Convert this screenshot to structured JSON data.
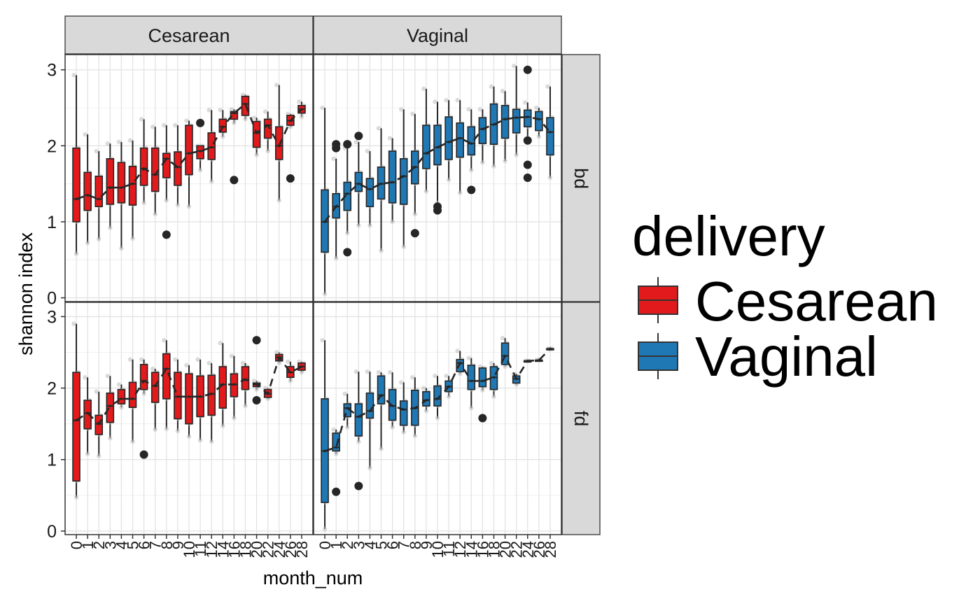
{
  "chart_data": {
    "type": "box",
    "xlabel": "month_num",
    "ylabel": "shannon index",
    "ylim": [
      -0.05,
      3.2
    ],
    "y_ticks": [
      0,
      1,
      2,
      3
    ],
    "x_categories": [
      "0",
      "1",
      "2",
      "3",
      "4",
      "5",
      "6",
      "7",
      "8",
      "9",
      "10",
      "11",
      "12",
      "14",
      "16",
      "18",
      "20",
      "22",
      "24",
      "26",
      "28"
    ],
    "facet_cols": [
      "Cesarean",
      "Vaginal"
    ],
    "facet_rows": [
      "bd",
      "fd"
    ],
    "grid": true,
    "legend": {
      "title": "delivery",
      "position": "right",
      "entries": [
        {
          "name": "Cesarean",
          "color": "#e31a1c"
        },
        {
          "name": "Vaginal",
          "color": "#1f78b4"
        }
      ]
    },
    "panels": [
      {
        "row": "bd",
        "col": "Cesarean",
        "color": "#e31a1c",
        "boxes": [
          {
            "x": "0",
            "lw": 0.58,
            "q1": 1.0,
            "med": 1.3,
            "q3": 1.97,
            "uw": 2.93,
            "outliers": []
          },
          {
            "x": "1",
            "lw": 0.72,
            "q1": 1.15,
            "med": 1.35,
            "q3": 1.65,
            "uw": 2.15,
            "outliers": []
          },
          {
            "x": "2",
            "lw": 0.77,
            "q1": 1.2,
            "med": 1.3,
            "q3": 1.6,
            "uw": 1.93,
            "outliers": []
          },
          {
            "x": "3",
            "lw": 0.92,
            "q1": 1.23,
            "med": 1.45,
            "q3": 1.83,
            "uw": 2.03,
            "outliers": []
          },
          {
            "x": "4",
            "lw": 0.65,
            "q1": 1.25,
            "med": 1.45,
            "q3": 1.78,
            "uw": 2.05,
            "outliers": []
          },
          {
            "x": "5",
            "lw": 0.78,
            "q1": 1.22,
            "med": 1.5,
            "q3": 1.73,
            "uw": 2.07,
            "outliers": []
          },
          {
            "x": "6",
            "lw": 1.25,
            "q1": 1.48,
            "med": 1.7,
            "q3": 1.97,
            "uw": 2.35,
            "outliers": []
          },
          {
            "x": "7",
            "lw": 1.1,
            "q1": 1.4,
            "med": 1.62,
            "q3": 1.97,
            "uw": 2.25,
            "outliers": []
          },
          {
            "x": "8",
            "lw": 1.28,
            "q1": 1.58,
            "med": 1.83,
            "q3": 1.9,
            "uw": 2.27,
            "outliers": [
              0.83
            ]
          },
          {
            "x": "9",
            "lw": 1.22,
            "q1": 1.48,
            "med": 1.72,
            "q3": 1.92,
            "uw": 2.27,
            "outliers": []
          },
          {
            "x": "10",
            "lw": 1.2,
            "q1": 1.62,
            "med": 1.9,
            "q3": 2.27,
            "uw": 2.33,
            "outliers": []
          },
          {
            "x": "11",
            "lw": 1.68,
            "q1": 1.83,
            "med": 1.93,
            "q3": 2.0,
            "uw": 2.0,
            "outliers": [
              2.3
            ]
          },
          {
            "x": "12",
            "lw": 1.53,
            "q1": 1.82,
            "med": 1.98,
            "q3": 2.17,
            "uw": 2.47,
            "outliers": []
          },
          {
            "x": "14",
            "lw": 2.12,
            "q1": 2.18,
            "med": 2.25,
            "q3": 2.35,
            "uw": 2.47,
            "outliers": []
          },
          {
            "x": "16",
            "lw": 2.3,
            "q1": 2.35,
            "med": 2.43,
            "q3": 2.45,
            "uw": 2.48,
            "outliers": [
              1.55
            ]
          },
          {
            "x": "18",
            "lw": 2.35,
            "q1": 2.4,
            "med": 2.55,
            "q3": 2.65,
            "uw": 2.67,
            "outliers": []
          },
          {
            "x": "20",
            "lw": 1.88,
            "q1": 1.98,
            "med": 2.17,
            "q3": 2.32,
            "uw": 2.37,
            "outliers": []
          },
          {
            "x": "22",
            "lw": 1.93,
            "q1": 2.1,
            "med": 2.27,
            "q3": 2.35,
            "uw": 2.45,
            "outliers": []
          },
          {
            "x": "24",
            "lw": 1.28,
            "q1": 1.82,
            "med": 2.0,
            "q3": 2.25,
            "uw": 2.8,
            "outliers": []
          },
          {
            "x": "26",
            "lw": 2.25,
            "q1": 2.27,
            "med": 2.33,
            "q3": 2.4,
            "uw": 2.42,
            "outliers": [
              1.57
            ]
          },
          {
            "x": "28",
            "lw": 2.38,
            "q1": 2.43,
            "med": 2.48,
            "q3": 2.53,
            "uw": 2.58,
            "outliers": []
          }
        ]
      },
      {
        "row": "bd",
        "col": "Vaginal",
        "color": "#1f78b4",
        "boxes": [
          {
            "x": "0",
            "lw": 0.05,
            "q1": 0.6,
            "med": 1.0,
            "q3": 1.42,
            "uw": 2.5,
            "outliers": []
          },
          {
            "x": "1",
            "lw": 0.52,
            "q1": 1.05,
            "med": 1.2,
            "q3": 1.37,
            "uw": 1.83,
            "outliers": [
              1.97,
              2.02
            ]
          },
          {
            "x": "2",
            "lw": 0.85,
            "q1": 1.15,
            "med": 1.37,
            "q3": 1.52,
            "uw": 1.97,
            "outliers": [
              0.6,
              2.02,
              2.02
            ]
          },
          {
            "x": "3",
            "lw": 0.95,
            "q1": 1.4,
            "med": 1.5,
            "q3": 1.65,
            "uw": 2.05,
            "outliers": [
              2.13
            ]
          },
          {
            "x": "4",
            "lw": 0.95,
            "q1": 1.2,
            "med": 1.43,
            "q3": 1.57,
            "uw": 1.93,
            "outliers": []
          },
          {
            "x": "5",
            "lw": 0.62,
            "q1": 1.3,
            "med": 1.5,
            "q3": 1.72,
            "uw": 2.23,
            "outliers": []
          },
          {
            "x": "6",
            "lw": 1.0,
            "q1": 1.25,
            "med": 1.52,
            "q3": 1.93,
            "uw": 2.1,
            "outliers": []
          },
          {
            "x": "7",
            "lw": 0.67,
            "q1": 1.23,
            "med": 1.6,
            "q3": 1.83,
            "uw": 2.48,
            "outliers": []
          },
          {
            "x": "8",
            "lw": 1.1,
            "q1": 1.5,
            "med": 1.72,
            "q3": 1.93,
            "uw": 2.42,
            "outliers": [
              0.85
            ]
          },
          {
            "x": "9",
            "lw": 1.4,
            "q1": 1.7,
            "med": 1.9,
            "q3": 2.27,
            "uw": 2.75,
            "outliers": []
          },
          {
            "x": "10",
            "lw": 1.25,
            "q1": 1.75,
            "med": 1.98,
            "q3": 2.27,
            "uw": 2.58,
            "outliers": [
              1.15,
              1.2
            ]
          },
          {
            "x": "11",
            "lw": 1.55,
            "q1": 1.82,
            "med": 2.05,
            "q3": 2.38,
            "uw": 2.6,
            "outliers": []
          },
          {
            "x": "12",
            "lw": 1.38,
            "q1": 1.85,
            "med": 2.1,
            "q3": 2.3,
            "uw": 2.6,
            "outliers": []
          },
          {
            "x": "14",
            "lw": 1.68,
            "q1": 1.88,
            "med": 2.03,
            "q3": 2.25,
            "uw": 2.48,
            "outliers": [
              1.42
            ]
          },
          {
            "x": "16",
            "lw": 1.78,
            "q1": 2.03,
            "med": 2.22,
            "q3": 2.37,
            "uw": 2.48,
            "outliers": []
          },
          {
            "x": "18",
            "lw": 1.73,
            "q1": 2.02,
            "med": 2.28,
            "q3": 2.55,
            "uw": 2.78,
            "outliers": []
          },
          {
            "x": "20",
            "lw": 1.8,
            "q1": 2.1,
            "med": 2.35,
            "q3": 2.53,
            "uw": 2.72,
            "outliers": []
          },
          {
            "x": "22",
            "lw": 1.88,
            "q1": 2.17,
            "med": 2.37,
            "q3": 2.48,
            "uw": 3.05,
            "outliers": []
          },
          {
            "x": "24",
            "lw": 2.1,
            "q1": 2.25,
            "med": 2.38,
            "q3": 2.47,
            "uw": 2.57,
            "outliers": [
              1.58,
              1.75,
              2.07,
              3.0
            ]
          },
          {
            "x": "26",
            "lw": 2.12,
            "q1": 2.2,
            "med": 2.35,
            "q3": 2.45,
            "uw": 2.5,
            "outliers": []
          },
          {
            "x": "28",
            "lw": 1.58,
            "q1": 1.88,
            "med": 2.18,
            "q3": 2.37,
            "uw": 2.78,
            "outliers": []
          }
        ]
      },
      {
        "row": "fd",
        "col": "Cesarean",
        "color": "#e31a1c",
        "boxes": [
          {
            "x": "0",
            "lw": 0.47,
            "q1": 0.7,
            "med": 1.55,
            "q3": 2.22,
            "uw": 2.9,
            "outliers": []
          },
          {
            "x": "1",
            "lw": 1.08,
            "q1": 1.43,
            "med": 1.65,
            "q3": 1.83,
            "uw": 2.15,
            "outliers": []
          },
          {
            "x": "2",
            "lw": 1.05,
            "q1": 1.35,
            "med": 1.5,
            "q3": 1.62,
            "uw": 1.95,
            "outliers": []
          },
          {
            "x": "3",
            "lw": 1.3,
            "q1": 1.52,
            "med": 1.75,
            "q3": 1.93,
            "uw": 2.17,
            "outliers": []
          },
          {
            "x": "4",
            "lw": 1.73,
            "q1": 1.78,
            "med": 1.85,
            "q3": 1.98,
            "uw": 2.05,
            "outliers": []
          },
          {
            "x": "5",
            "lw": 1.25,
            "q1": 1.73,
            "med": 1.85,
            "q3": 2.08,
            "uw": 2.4,
            "outliers": []
          },
          {
            "x": "6",
            "lw": 1.92,
            "q1": 1.98,
            "med": 2.1,
            "q3": 2.33,
            "uw": 2.4,
            "outliers": [
              1.07
            ]
          },
          {
            "x": "7",
            "lw": 1.42,
            "q1": 1.8,
            "med": 2.03,
            "q3": 2.22,
            "uw": 2.27,
            "outliers": []
          },
          {
            "x": "8",
            "lw": 1.43,
            "q1": 1.85,
            "med": 2.27,
            "q3": 2.48,
            "uw": 2.67,
            "outliers": []
          },
          {
            "x": "9",
            "lw": 1.4,
            "q1": 1.57,
            "med": 1.88,
            "q3": 2.22,
            "uw": 2.4,
            "outliers": []
          },
          {
            "x": "10",
            "lw": 1.32,
            "q1": 1.5,
            "med": 1.88,
            "q3": 2.2,
            "uw": 2.32,
            "outliers": []
          },
          {
            "x": "11",
            "lw": 1.27,
            "q1": 1.6,
            "med": 1.88,
            "q3": 2.17,
            "uw": 2.4,
            "outliers": []
          },
          {
            "x": "12",
            "lw": 1.25,
            "q1": 1.62,
            "med": 1.92,
            "q3": 2.18,
            "uw": 2.35,
            "outliers": []
          },
          {
            "x": "14",
            "lw": 1.47,
            "q1": 1.72,
            "med": 2.05,
            "q3": 2.3,
            "uw": 2.63,
            "outliers": []
          },
          {
            "x": "16",
            "lw": 1.58,
            "q1": 1.88,
            "med": 2.05,
            "q3": 2.2,
            "uw": 2.45,
            "outliers": []
          },
          {
            "x": "18",
            "lw": 1.75,
            "q1": 1.98,
            "med": 2.12,
            "q3": 2.3,
            "uw": 2.35,
            "outliers": []
          },
          {
            "x": "20",
            "lw": 1.98,
            "q1": 2.02,
            "med": 2.05,
            "q3": 2.07,
            "uw": 2.1,
            "outliers": [
              1.83,
              2.67
            ]
          },
          {
            "x": "22",
            "lw": 1.85,
            "q1": 1.87,
            "med": 1.92,
            "q3": 1.98,
            "uw": 2.0,
            "outliers": []
          },
          {
            "x": "24",
            "lw": 2.35,
            "q1": 2.38,
            "med": 2.43,
            "q3": 2.47,
            "uw": 2.5,
            "outliers": []
          },
          {
            "x": "26",
            "lw": 2.1,
            "q1": 2.15,
            "med": 2.22,
            "q3": 2.3,
            "uw": 2.37,
            "outliers": []
          },
          {
            "x": "28",
            "lw": 2.22,
            "q1": 2.25,
            "med": 2.3,
            "q3": 2.35,
            "uw": 2.37,
            "outliers": []
          }
        ]
      },
      {
        "row": "fd",
        "col": "Vaginal",
        "color": "#1f78b4",
        "boxes": [
          {
            "x": "0",
            "lw": 0.03,
            "q1": 0.4,
            "med": 1.12,
            "q3": 1.85,
            "uw": 2.67,
            "outliers": []
          },
          {
            "x": "1",
            "lw": 1.08,
            "q1": 1.12,
            "med": 1.17,
            "q3": 1.37,
            "uw": 1.42,
            "outliers": [
              0.55
            ]
          },
          {
            "x": "2",
            "lw": 1.45,
            "q1": 1.6,
            "med": 1.72,
            "q3": 1.78,
            "uw": 1.92,
            "outliers": []
          },
          {
            "x": "3",
            "lw": 1.25,
            "q1": 1.33,
            "med": 1.6,
            "q3": 1.78,
            "uw": 2.23,
            "outliers": [
              0.63
            ]
          },
          {
            "x": "4",
            "lw": 0.88,
            "q1": 1.58,
            "med": 1.68,
            "q3": 1.93,
            "uw": 2.23,
            "outliers": []
          },
          {
            "x": "5",
            "lw": 1.15,
            "q1": 1.78,
            "med": 1.9,
            "q3": 2.17,
            "uw": 2.22,
            "outliers": []
          },
          {
            "x": "6",
            "lw": 1.45,
            "q1": 1.55,
            "med": 1.75,
            "q3": 1.98,
            "uw": 2.22,
            "outliers": []
          },
          {
            "x": "7",
            "lw": 1.38,
            "q1": 1.48,
            "med": 1.7,
            "q3": 1.82,
            "uw": 2.08,
            "outliers": []
          },
          {
            "x": "8",
            "lw": 1.33,
            "q1": 1.48,
            "med": 1.72,
            "q3": 1.97,
            "uw": 2.15,
            "outliers": []
          },
          {
            "x": "9",
            "lw": 1.68,
            "q1": 1.75,
            "med": 1.83,
            "q3": 1.95,
            "uw": 2.0,
            "outliers": []
          },
          {
            "x": "10",
            "lw": 1.58,
            "q1": 1.75,
            "med": 1.85,
            "q3": 2.03,
            "uw": 2.17,
            "outliers": []
          },
          {
            "x": "11",
            "lw": 1.88,
            "q1": 1.95,
            "med": 2.02,
            "q3": 2.1,
            "uw": 2.17,
            "outliers": []
          },
          {
            "x": "12",
            "lw": 2.2,
            "q1": 2.23,
            "med": 2.35,
            "q3": 2.4,
            "uw": 2.52,
            "outliers": []
          },
          {
            "x": "14",
            "lw": 1.72,
            "q1": 1.98,
            "med": 2.1,
            "q3": 2.32,
            "uw": 2.42,
            "outliers": []
          },
          {
            "x": "16",
            "lw": 1.97,
            "q1": 2.02,
            "med": 2.1,
            "q3": 2.28,
            "uw": 2.3,
            "outliers": [
              1.58
            ]
          },
          {
            "x": "18",
            "lw": 1.88,
            "q1": 1.98,
            "med": 2.15,
            "q3": 2.3,
            "uw": 2.35,
            "outliers": []
          },
          {
            "x": "20",
            "lw": 2.3,
            "q1": 2.33,
            "med": 2.45,
            "q3": 2.63,
            "uw": 2.7,
            "outliers": []
          },
          {
            "x": "22",
            "lw": 2.05,
            "q1": 2.07,
            "med": 2.13,
            "q3": 2.17,
            "uw": 2.2,
            "outliers": []
          },
          {
            "x": "24",
            "lw": 2.38,
            "q1": 2.38,
            "med": 2.38,
            "q3": 2.38,
            "uw": 2.38,
            "outliers": []
          },
          {
            "x": "26",
            "lw": 2.39,
            "q1": 2.39,
            "med": 2.39,
            "q3": 2.39,
            "uw": 2.39,
            "outliers": []
          },
          {
            "x": "28",
            "lw": 2.55,
            "q1": 2.55,
            "med": 2.55,
            "q3": 2.55,
            "uw": 2.55,
            "outliers": []
          }
        ]
      }
    ]
  }
}
